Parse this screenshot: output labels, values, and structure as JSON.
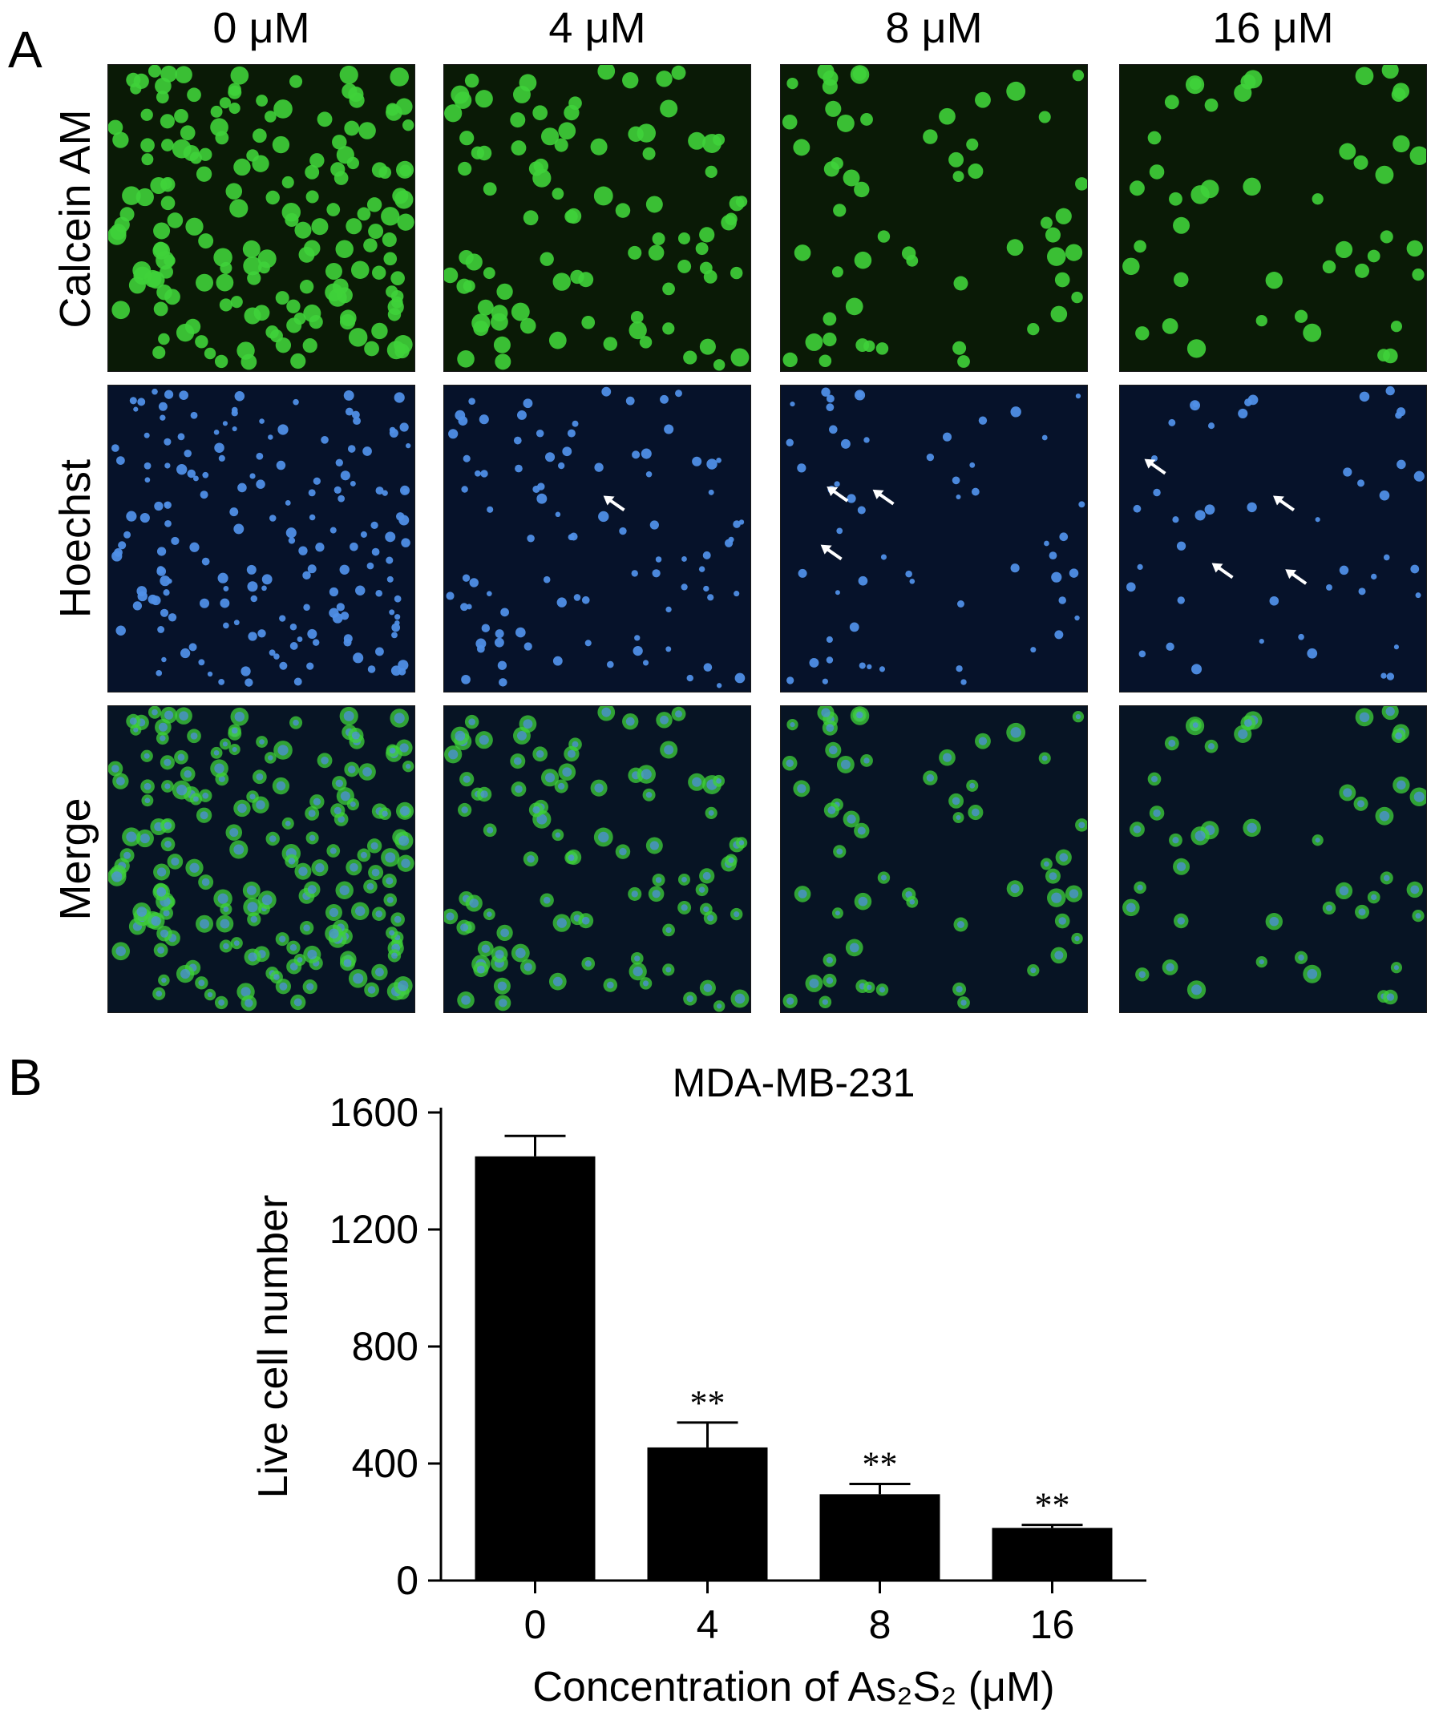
{
  "figure": {
    "panel_a_label": "A",
    "panel_b_label": "B",
    "concentrations": [
      "0 μM",
      "4 μM",
      "8 μM",
      "16 μM"
    ],
    "stains": [
      "Calcein AM",
      "Hoechst",
      "Merge"
    ],
    "colors": {
      "calcein": "#3fd13a",
      "hoechst": "#4f8fe6",
      "background": "#000000",
      "bars": "#000000"
    }
  },
  "chart_data": {
    "type": "bar",
    "title": "MDA-MB-231",
    "xlabel": "Concentration of As₂S₂ (μM)",
    "ylabel": "Live cell number",
    "categories": [
      "0",
      "4",
      "8",
      "16"
    ],
    "values": [
      1450,
      455,
      295,
      180
    ],
    "errors": [
      70,
      85,
      35,
      10
    ],
    "annotations": [
      "",
      "**",
      "**",
      "**"
    ],
    "ylim": [
      0,
      1600
    ],
    "yticks": [
      0,
      400,
      800,
      1200,
      1600
    ]
  }
}
